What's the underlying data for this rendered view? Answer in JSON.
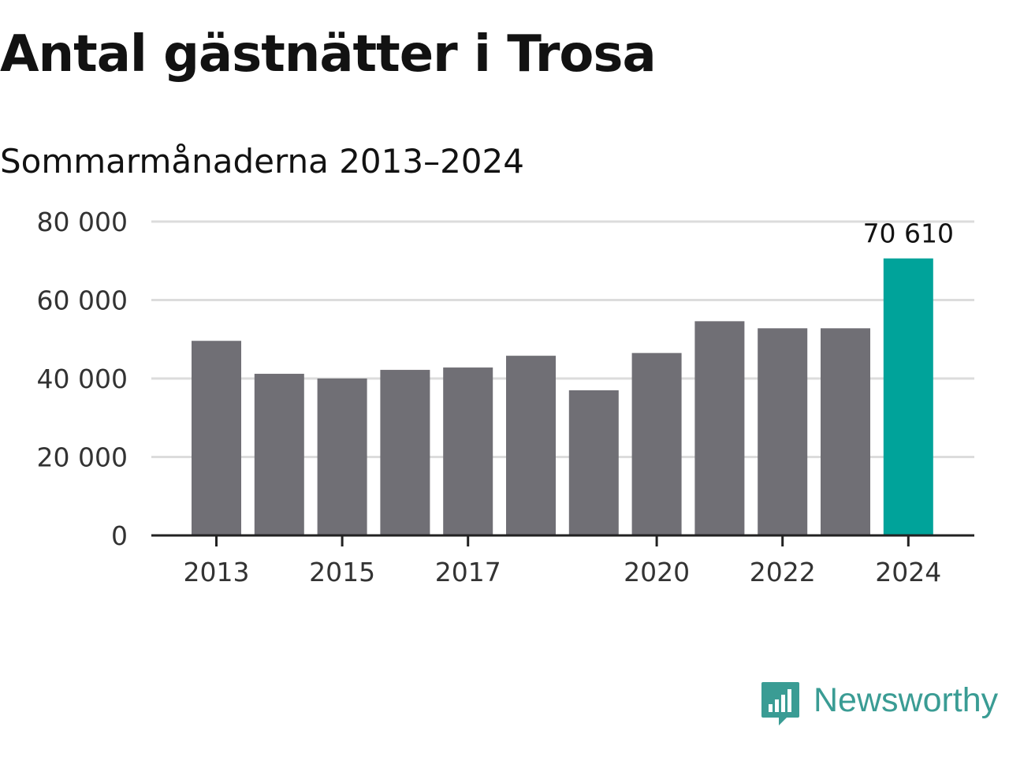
{
  "title": "Antal gästnätter i Trosa",
  "subtitle": "Sommarmånaderna 2013–2024",
  "colors": {
    "bar": "#706f75",
    "highlight": "#00a39a",
    "brand": "#3a9c94",
    "grid": "#dcdcdc",
    "axis": "#222222"
  },
  "brand": {
    "name": "Newsworthy",
    "icon": "newsworthy-logo-icon"
  },
  "chart_data": {
    "type": "bar",
    "title": "Antal gästnätter i Trosa",
    "subtitle": "Sommarmånaderna 2013–2024",
    "xlabel": "",
    "ylabel": "",
    "categories": [
      "2013",
      "2014",
      "2015",
      "2016",
      "2017",
      "2018",
      "2019",
      "2020",
      "2021",
      "2022",
      "2023",
      "2024"
    ],
    "values": [
      49600,
      41200,
      40000,
      42200,
      42800,
      45800,
      37000,
      46500,
      54600,
      52800,
      52800,
      70610
    ],
    "highlight_index": 11,
    "ylim": [
      0,
      80000
    ],
    "yticks": [
      0,
      20000,
      40000,
      60000,
      80000
    ],
    "ytick_labels": [
      "0",
      "20 000",
      "40 000",
      "60 000",
      "80 000"
    ],
    "xtick_labels": [
      "2013",
      "2015",
      "2017",
      "2020",
      "2022",
      "2024"
    ],
    "data_labels": [
      {
        "index": 11,
        "text": "70 610"
      }
    ],
    "grid": true,
    "legend": "none"
  }
}
